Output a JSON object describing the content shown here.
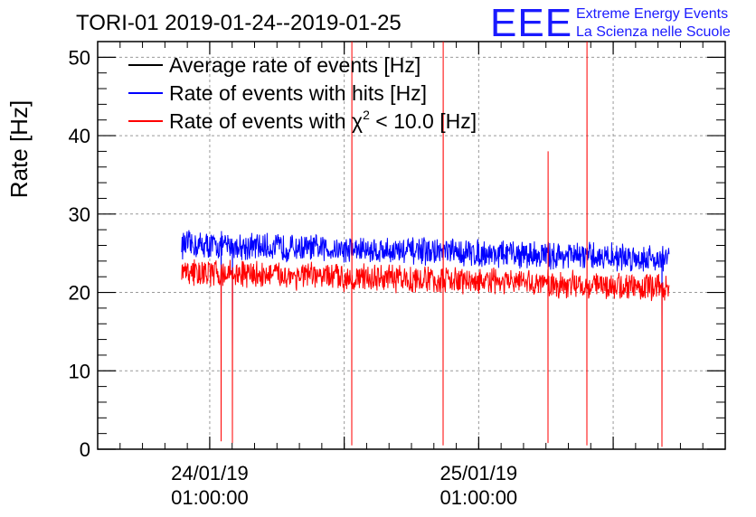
{
  "logo": {
    "mark": "EEE",
    "line1": "Extreme Energy Events",
    "line2": "La Scienza nelle Scuole",
    "color": "#1a1aff"
  },
  "chart_data": {
    "type": "line",
    "title": "TORI-01 2019-01-24--2019-01-25",
    "ylabel": "Rate [Hz]",
    "xlabel": "",
    "ylim": [
      0,
      52
    ],
    "xlim": [
      "2019-01-23 15:00:00",
      "2019-01-25 23:00:00"
    ],
    "y_ticks": [
      0,
      10,
      20,
      30,
      40,
      50
    ],
    "x_ticks": [
      {
        "time": "2019-01-24 01:00:00",
        "date": "24/01/19",
        "clock": "01:00:00"
      },
      {
        "time": "2019-01-25 01:00:00",
        "date": "25/01/19",
        "clock": "01:00:00"
      }
    ],
    "grid": true,
    "legend_position": "top-left",
    "series": [
      {
        "name": "Average rate of events [Hz]",
        "color": "#000000",
        "start": "2019-01-23 22:30:00",
        "end": "2019-01-25 18:00:00",
        "level_start": 22.5,
        "level_end": 20.5,
        "noise": 0
      },
      {
        "name": "Rate of events with hits [Hz]",
        "color": "#0000ff",
        "start": "2019-01-23 22:30:00",
        "end": "2019-01-25 18:00:00",
        "level_start": 26.1,
        "level_end": 24.3,
        "noise": 1.4
      },
      {
        "name_prefix": "Rate of events with ",
        "name_symbol": "χ",
        "name_sup": "2",
        "name_suffix": " < 10.0 [Hz]",
        "color": "#ff0000",
        "start": "2019-01-23 22:30:00",
        "end": "2019-01-25 18:00:00",
        "level_start": 22.6,
        "level_end": 20.6,
        "noise": 1.4
      }
    ],
    "features": [
      {
        "time": "2019-01-24 02:00:00",
        "blue_min": 17.5,
        "red_min": 1.0,
        "red_max": 0
      },
      {
        "time": "2019-01-24 03:00:00",
        "blue_min": 12.0,
        "red_min": 0.8,
        "red_max": 0
      },
      {
        "time": "2019-01-24 13:40:00",
        "blue_min": 0,
        "red_min": 0.5,
        "red_max": 52
      },
      {
        "time": "2019-01-24 21:50:00",
        "blue_min": 0,
        "red_min": 0.5,
        "red_max": 52
      },
      {
        "time": "2019-01-25 07:10:00",
        "blue_min": 0,
        "red_min": 0.8,
        "red_max": 38
      },
      {
        "time": "2019-01-25 10:40:00",
        "blue_min": 0,
        "red_min": 0.5,
        "red_max": 52
      },
      {
        "time": "2019-01-25 17:20:00",
        "blue_min": 16.0,
        "red_min": 0.3,
        "red_max": 0
      }
    ]
  }
}
